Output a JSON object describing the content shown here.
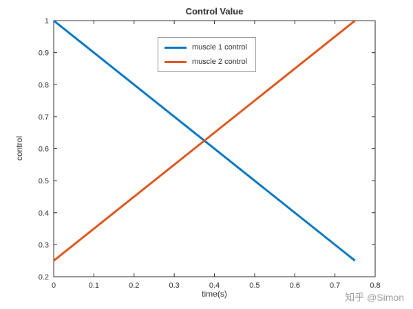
{
  "watermark": "知乎 @Simon",
  "chart_data": {
    "type": "line",
    "title": "Control Value",
    "xlabel": "time(s)",
    "ylabel": "control",
    "xlim": [
      0,
      0.8
    ],
    "ylim": [
      0.2,
      1
    ],
    "xticks": [
      0,
      0.1,
      0.2,
      0.3,
      0.4,
      0.5,
      0.6,
      0.7,
      0.8
    ],
    "xtick_labels": [
      "0",
      "0.1",
      "0.2",
      "0.3",
      "0.4",
      "0.5",
      "0.6",
      "0.7",
      "0.8"
    ],
    "yticks": [
      0.2,
      0.3,
      0.4,
      0.5,
      0.6,
      0.7,
      0.8,
      0.9,
      1
    ],
    "ytick_labels": [
      "0.2",
      "0.3",
      "0.4",
      "0.5",
      "0.6",
      "0.7",
      "0.8",
      "0.9",
      "1"
    ],
    "grid": false,
    "legend_position": "top-center",
    "axis_color": "#262626",
    "line_width": 3,
    "series": [
      {
        "name": "muscle 1 control",
        "color": "#0072BD",
        "x": [
          0,
          0.75
        ],
        "y": [
          1,
          0.25
        ]
      },
      {
        "name": "muscle 2 control",
        "color": "#D95319",
        "x": [
          0,
          0.75
        ],
        "y": [
          0.25,
          1
        ]
      }
    ]
  }
}
